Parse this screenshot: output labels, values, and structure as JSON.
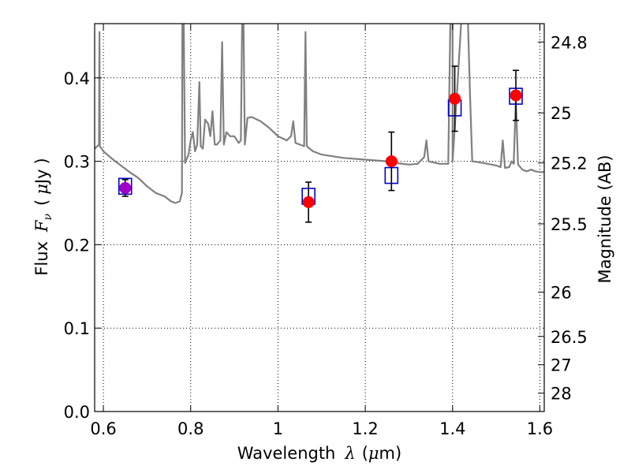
{
  "chart_data": {
    "type": "scatter",
    "title": "",
    "xlabel": "Wavelength  λ (μm)",
    "ylabel": "Flux  F_ν  ( μJy )",
    "ylabel_parts": {
      "prefix": "Flux",
      "symbol": "F",
      "subscript": "ν",
      "unit_open": "(",
      "unit_mu": "μ",
      "unit": "Jy",
      "unit_close": ")"
    },
    "xlabel_parts": {
      "prefix": "Wavelength",
      "symbol": "λ",
      "unit_open": "(",
      "unit_mu": "μ",
      "unit": "m)"
    },
    "y2label": "Magnitude (AB)",
    "xlim": [
      0.58,
      1.61
    ],
    "ylim": [
      0.0,
      0.465
    ],
    "grid": true,
    "x_ticks": [
      0.6,
      0.8,
      1.0,
      1.2,
      1.4,
      1.6
    ],
    "x_tick_labels": [
      "0.6",
      "0.8",
      "1",
      "1.2",
      "1.4",
      "1.6"
    ],
    "y_ticks": [
      0.0,
      0.1,
      0.2,
      0.3,
      0.4
    ],
    "y_tick_labels": [
      "0.0",
      "0.1",
      "0.2",
      "0.3",
      "0.4"
    ],
    "y2_ticks": [
      {
        "label": "24.8",
        "flux": 0.443
      },
      {
        "label": "25",
        "flux": 0.358
      },
      {
        "label": "25.2",
        "flux": 0.298
      },
      {
        "label": "25.5",
        "flux": 0.225
      },
      {
        "label": "26",
        "flux": 0.143
      },
      {
        "label": "26.5",
        "flux": 0.09
      },
      {
        "label": "27",
        "flux": 0.056
      },
      {
        "label": "28",
        "flux": 0.022
      }
    ],
    "series": [
      {
        "kind": "model_spectrum",
        "color": "#808080",
        "points": [
          [
            0.58,
            0.315
          ],
          [
            0.59,
            0.32
          ],
          [
            0.591,
            0.455
          ],
          [
            0.592,
            0.318
          ],
          [
            0.6,
            0.312
          ],
          [
            0.62,
            0.303
          ],
          [
            0.64,
            0.295
          ],
          [
            0.66,
            0.287
          ],
          [
            0.68,
            0.28
          ],
          [
            0.7,
            0.27
          ],
          [
            0.72,
            0.262
          ],
          [
            0.74,
            0.258
          ],
          [
            0.755,
            0.252
          ],
          [
            0.765,
            0.25
          ],
          [
            0.775,
            0.252
          ],
          [
            0.78,
            0.262
          ],
          [
            0.781,
            0.47
          ],
          [
            0.784,
            0.47
          ],
          [
            0.787,
            0.298
          ],
          [
            0.795,
            0.308
          ],
          [
            0.8,
            0.325
          ],
          [
            0.805,
            0.335
          ],
          [
            0.81,
            0.312
          ],
          [
            0.815,
            0.32
          ],
          [
            0.82,
            0.395
          ],
          [
            0.823,
            0.318
          ],
          [
            0.828,
            0.315
          ],
          [
            0.833,
            0.35
          ],
          [
            0.84,
            0.345
          ],
          [
            0.845,
            0.33
          ],
          [
            0.85,
            0.36
          ],
          [
            0.855,
            0.32
          ],
          [
            0.86,
            0.32
          ],
          [
            0.868,
            0.325
          ],
          [
            0.872,
            0.443
          ],
          [
            0.876,
            0.32
          ],
          [
            0.882,
            0.335
          ],
          [
            0.89,
            0.33
          ],
          [
            0.9,
            0.33
          ],
          [
            0.91,
            0.322
          ],
          [
            0.915,
            0.325
          ],
          [
            0.918,
            0.47
          ],
          [
            0.921,
            0.47
          ],
          [
            0.924,
            0.32
          ],
          [
            0.93,
            0.352
          ],
          [
            0.94,
            0.353
          ],
          [
            0.96,
            0.348
          ],
          [
            0.98,
            0.34
          ],
          [
            1.0,
            0.33
          ],
          [
            1.02,
            0.325
          ],
          [
            1.03,
            0.33
          ],
          [
            1.035,
            0.348
          ],
          [
            1.04,
            0.322
          ],
          [
            1.05,
            0.32
          ],
          [
            1.06,
            0.318
          ],
          [
            1.063,
            0.455
          ],
          [
            1.066,
            0.318
          ],
          [
            1.08,
            0.312
          ],
          [
            1.1,
            0.308
          ],
          [
            1.15,
            0.304
          ],
          [
            1.2,
            0.302
          ],
          [
            1.25,
            0.3
          ],
          [
            1.27,
            0.298
          ],
          [
            1.3,
            0.296
          ],
          [
            1.32,
            0.297
          ],
          [
            1.335,
            0.305
          ],
          [
            1.34,
            0.325
          ],
          [
            1.345,
            0.3
          ],
          [
            1.37,
            0.297
          ],
          [
            1.39,
            0.297
          ],
          [
            1.395,
            0.47
          ],
          [
            1.4,
            0.47
          ],
          [
            1.4,
            0.3
          ],
          [
            1.41,
            0.38
          ],
          [
            1.42,
            0.47
          ],
          [
            1.435,
            0.47
          ],
          [
            1.44,
            0.38
          ],
          [
            1.445,
            0.3
          ],
          [
            1.47,
            0.298
          ],
          [
            1.5,
            0.295
          ],
          [
            1.51,
            0.293
          ],
          [
            1.515,
            0.325
          ],
          [
            1.52,
            0.292
          ],
          [
            1.53,
            0.293
          ],
          [
            1.535,
            0.3
          ],
          [
            1.54,
            0.297
          ],
          [
            1.545,
            0.374
          ],
          [
            1.55,
            0.296
          ],
          [
            1.56,
            0.29
          ],
          [
            1.57,
            0.288
          ],
          [
            1.58,
            0.29
          ],
          [
            1.59,
            0.288
          ],
          [
            1.6,
            0.287
          ],
          [
            1.61,
            0.287
          ]
        ]
      },
      {
        "kind": "model_photometry",
        "marker": "square",
        "color": "#0000cc",
        "points": [
          [
            0.65,
            0.27
          ],
          [
            1.07,
            0.258
          ],
          [
            1.26,
            0.283
          ],
          [
            1.405,
            0.364
          ],
          [
            1.545,
            0.378
          ]
        ]
      },
      {
        "kind": "observed",
        "marker": "circle",
        "color": "#ff0000",
        "points": [
          {
            "x": 0.65,
            "y": 0.268,
            "err": 0.01,
            "fill": "#a000c8"
          },
          {
            "x": 1.07,
            "y": 0.251,
            "err": 0.024
          },
          {
            "x": 1.26,
            "y": 0.3,
            "err": 0.035
          },
          {
            "x": 1.405,
            "y": 0.375,
            "err": 0.039
          },
          {
            "x": 1.545,
            "y": 0.379,
            "err": 0.03
          }
        ]
      }
    ]
  }
}
